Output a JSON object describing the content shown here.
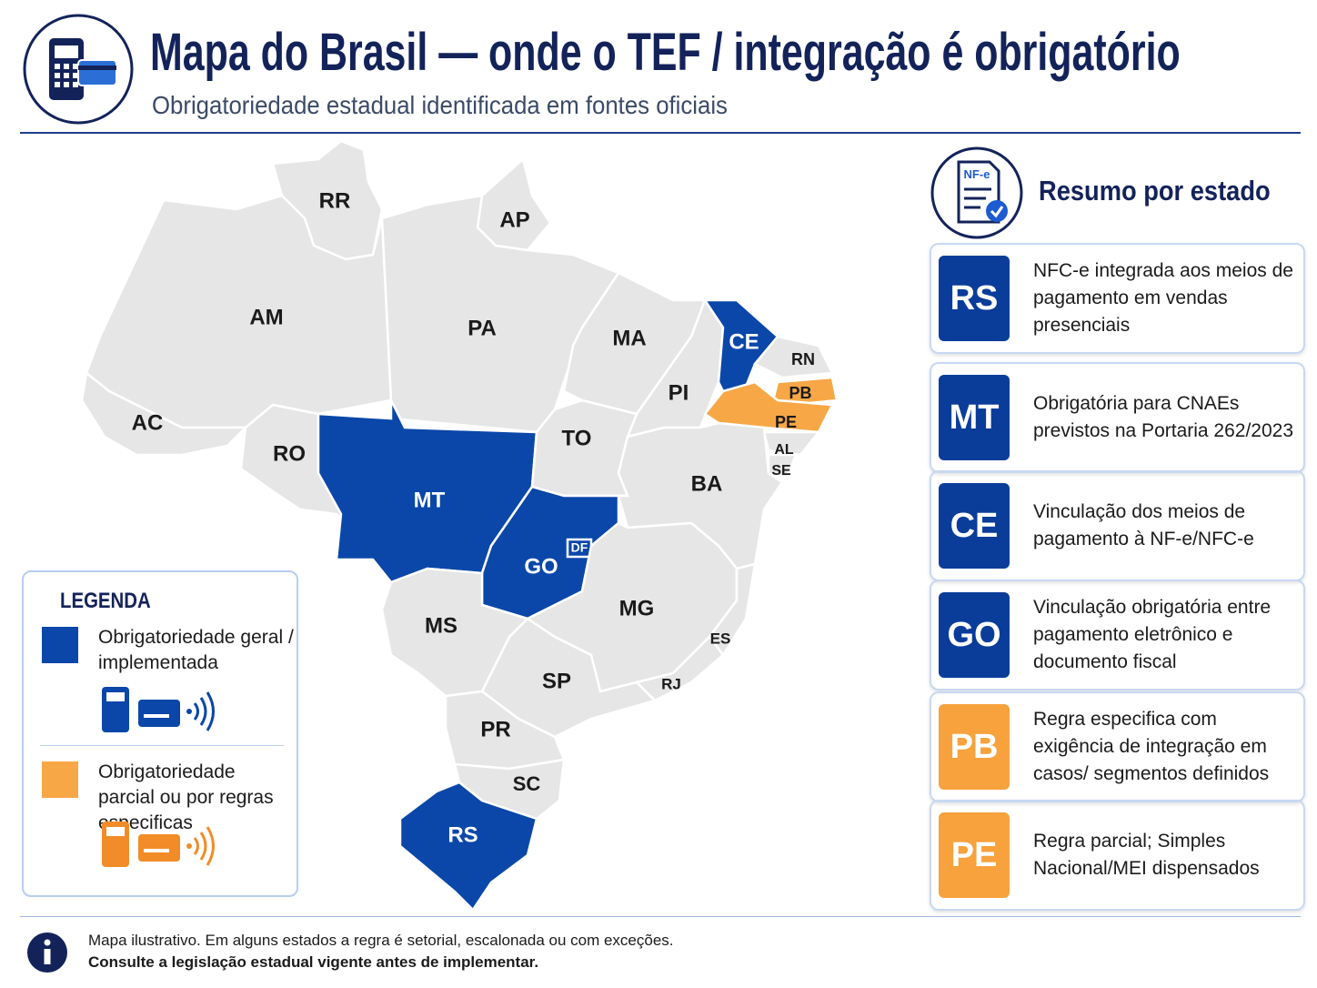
{
  "header": {
    "title": "Mapa do Brasil — onde o TEF / integração é obrigatório",
    "subtitle": "Obrigatoriedade estadual identificada em fontes oficiais"
  },
  "map": {
    "states": [
      {
        "label": "RR",
        "color": "#e6e6e6"
      },
      {
        "label": "AP",
        "color": "#e6e6e6"
      },
      {
        "label": "AM",
        "color": "#e6e6e6"
      },
      {
        "label": "PA",
        "color": "#e6e6e6"
      },
      {
        "label": "AC",
        "color": "#e6e6e6"
      },
      {
        "label": "RO",
        "color": "#e6e6e6"
      },
      {
        "label": "MT",
        "color": "#0a47a9"
      },
      {
        "label": "MA",
        "color": "#e6e6e6"
      },
      {
        "label": "PI",
        "color": "#e6e6e6"
      },
      {
        "label": "CE",
        "color": "#0a47a9"
      },
      {
        "label": "RN",
        "color": "#e6e6e6"
      },
      {
        "label": "PB",
        "color": "#f7a745"
      },
      {
        "label": "PE",
        "color": "#f7a745"
      },
      {
        "label": "AL",
        "color": "#e6e6e6"
      },
      {
        "label": "SE",
        "color": "#e6e6e6"
      },
      {
        "label": "TO",
        "color": "#e6e6e6"
      },
      {
        "label": "BA",
        "color": "#e6e6e6"
      },
      {
        "label": "GO",
        "color": "#0a47a9"
      },
      {
        "label": "DF",
        "color": "#0a47a9"
      },
      {
        "label": "MG",
        "color": "#e6e6e6"
      },
      {
        "label": "ES",
        "color": "#e6e6e6"
      },
      {
        "label": "RJ",
        "color": "#e6e6e6"
      },
      {
        "label": "SP",
        "color": "#e6e6e6"
      },
      {
        "label": "MS",
        "color": "#e6e6e6"
      },
      {
        "label": "PR",
        "color": "#e6e6e6"
      },
      {
        "label": "SC",
        "color": "#e6e6e6"
      },
      {
        "label": "RS",
        "color": "#0a47a9"
      }
    ]
  },
  "legend": {
    "title": "LEGENDA",
    "items": [
      {
        "label": "Obrigatoriedade geral / implementada",
        "color": "#0a47a9"
      },
      {
        "label": "Obrigatoriedade parcial ou por regras especificas",
        "color": "#f7a745"
      }
    ]
  },
  "summary": {
    "icon_label": "NF-e",
    "title": "Resumo por estado",
    "items": [
      {
        "code": "RS",
        "text": "NFC-e integrada aos meios de pagamento em vendas presenciais",
        "color": "#0a3d9a"
      },
      {
        "code": "MT",
        "text": "Obrigatória para CNAEs previstos na Portaria 262/2023",
        "color": "#0a3d9a"
      },
      {
        "code": "CE",
        "text": "Vinculação dos meios de pagamento à NF-e/NFC-e",
        "color": "#0a3d9a"
      },
      {
        "code": "GO",
        "text": "Vinculação obrigatória entre pagamento eletrônico e documento fiscal",
        "color": "#0a3d9a"
      },
      {
        "code": "PB",
        "text": "Regra especifica com exigência de integração em casos/ segmentos definidos",
        "color": "#f7a23c"
      },
      {
        "code": "PE",
        "text": "Regra parcial; Simples Nacional/MEI dispensados",
        "color": "#f7a23c"
      }
    ]
  },
  "footer": {
    "note": "Mapa ilustrativo. Em alguns estados a regra é setorial, escalonada ou com exceções.",
    "emphasis": "Consulte a legislação estadual vigente antes de implementar."
  }
}
